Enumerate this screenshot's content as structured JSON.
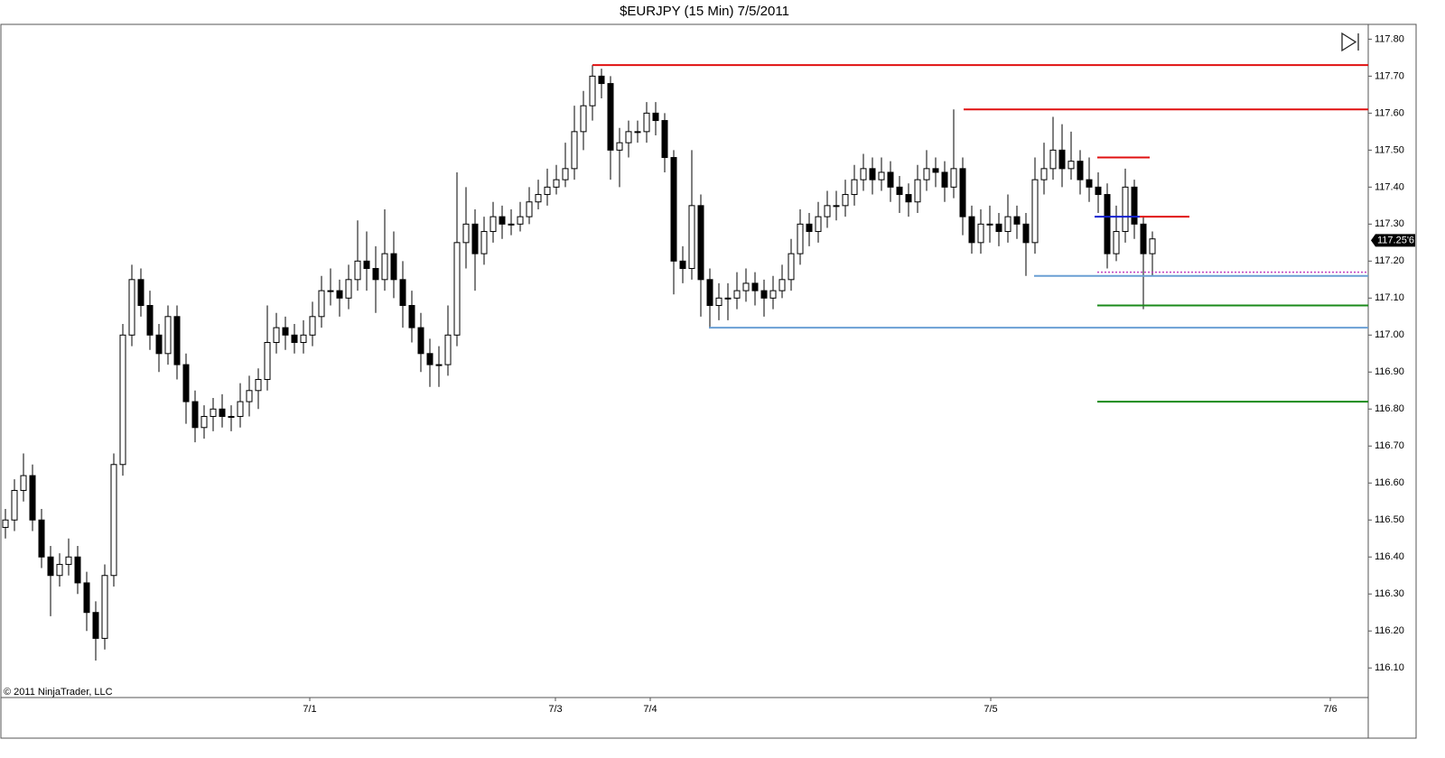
{
  "chart_data": {
    "type": "candlestick",
    "title": "$EURJPY (15 Min)  7/5/2011",
    "copyright": "© 2011 NinjaTrader, LLC",
    "xlim": [
      -0.4,
      150.9
    ],
    "xticks": [
      {
        "value": 33.7,
        "label": "7/1"
      },
      {
        "value": 60.9,
        "label": "7/3"
      },
      {
        "value": 71.4,
        "label": "7/4"
      },
      {
        "value": 109.1,
        "label": "7/5"
      },
      {
        "value": 146.7,
        "label": "7/6"
      }
    ],
    "ylim": [
      116.02,
      117.84
    ],
    "yticks": [
      {
        "value": 116.1,
        "label": "116.10"
      },
      {
        "value": 116.2,
        "label": "116.20"
      },
      {
        "value": 116.3,
        "label": "116.30"
      },
      {
        "value": 116.4,
        "label": "116.40"
      },
      {
        "value": 116.5,
        "label": "116.50"
      },
      {
        "value": 116.6,
        "label": "116.60"
      },
      {
        "value": 116.7,
        "label": "116.70"
      },
      {
        "value": 116.8,
        "label": "116.80"
      },
      {
        "value": 116.9,
        "label": "116.90"
      },
      {
        "value": 117.0,
        "label": "117.00"
      },
      {
        "value": 117.1,
        "label": "117.10"
      },
      {
        "value": 117.2,
        "label": "117.20"
      },
      {
        "value": 117.3,
        "label": "117.30"
      },
      {
        "value": 117.4,
        "label": "117.40"
      },
      {
        "value": 117.5,
        "label": "117.50"
      },
      {
        "value": 117.6,
        "label": "117.60"
      },
      {
        "value": 117.7,
        "label": "117.70"
      },
      {
        "value": 117.8,
        "label": "117.80"
      }
    ],
    "up_color": "#ffffff",
    "down_color": "#000000",
    "open": [
      116.48,
      116.5,
      116.58,
      116.62,
      116.5,
      116.4,
      116.35,
      116.38,
      116.4,
      116.33,
      116.25,
      116.18,
      116.35,
      116.65,
      117.0,
      117.15,
      117.08,
      117.0,
      116.95,
      117.05,
      116.92,
      116.82,
      116.75,
      116.78,
      116.8,
      116.78,
      116.78,
      116.82,
      116.85,
      116.88,
      116.98,
      117.02,
      117.0,
      116.98,
      117.0,
      117.05,
      117.12,
      117.12,
      117.1,
      117.15,
      117.2,
      117.18,
      117.15,
      117.22,
      117.15,
      117.08,
      117.02,
      116.95,
      116.92,
      116.92,
      117.0,
      117.25,
      117.3,
      117.22,
      117.28,
      117.32,
      117.3,
      117.3,
      117.32,
      117.36,
      117.38,
      117.4,
      117.42,
      117.45,
      117.55,
      117.62,
      117.7,
      117.68,
      117.5,
      117.52,
      117.55,
      117.55,
      117.6,
      117.58,
      117.48,
      117.2,
      117.18,
      117.35,
      117.15,
      117.08,
      117.1,
      117.1,
      117.12,
      117.14,
      117.12,
      117.1,
      117.12,
      117.15,
      117.22,
      117.3,
      117.28,
      117.32,
      117.35,
      117.35,
      117.38,
      117.42,
      117.45,
      117.42,
      117.44,
      117.4,
      117.38,
      117.36,
      117.42,
      117.45,
      117.44,
      117.4,
      117.45,
      117.32,
      117.25,
      117.3,
      117.3,
      117.28,
      117.32,
      117.3,
      117.25,
      117.42,
      117.45,
      117.5,
      117.45,
      117.47,
      117.42,
      117.4,
      117.38,
      117.22,
      117.28,
      117.4,
      117.3,
      117.22
    ],
    "high": [
      116.53,
      116.61,
      116.68,
      116.65,
      116.53,
      116.43,
      116.41,
      116.45,
      116.43,
      116.36,
      116.28,
      116.38,
      116.68,
      117.03,
      117.19,
      117.18,
      117.12,
      117.03,
      117.08,
      117.08,
      116.95,
      116.85,
      116.81,
      116.83,
      116.84,
      116.81,
      116.87,
      116.89,
      116.91,
      117.08,
      117.06,
      117.05,
      117.03,
      117.04,
      117.09,
      117.16,
      117.18,
      117.15,
      117.19,
      117.31,
      117.28,
      117.24,
      117.34,
      117.28,
      117.2,
      117.12,
      117.06,
      116.99,
      116.97,
      117.08,
      117.44,
      117.4,
      117.34,
      117.32,
      117.36,
      117.35,
      117.34,
      117.36,
      117.4,
      117.42,
      117.45,
      117.46,
      117.52,
      117.62,
      117.66,
      117.73,
      117.72,
      117.7,
      117.56,
      117.58,
      117.58,
      117.63,
      117.63,
      117.6,
      117.5,
      117.24,
      117.5,
      117.38,
      117.18,
      117.14,
      117.14,
      117.17,
      117.18,
      117.17,
      117.15,
      117.16,
      117.19,
      117.26,
      117.34,
      117.33,
      117.36,
      117.39,
      117.39,
      117.42,
      117.46,
      117.49,
      117.48,
      117.48,
      117.47,
      117.43,
      117.41,
      117.46,
      117.5,
      117.48,
      117.47,
      117.61,
      117.48,
      117.35,
      117.34,
      117.35,
      117.33,
      117.38,
      117.35,
      117.33,
      117.48,
      117.52,
      117.59,
      117.57,
      117.55,
      117.5,
      117.48,
      117.44,
      117.41,
      117.35,
      117.45,
      117.42,
      117.32,
      117.28
    ],
    "low": [
      116.45,
      116.47,
      116.55,
      116.47,
      116.37,
      116.24,
      116.32,
      116.35,
      116.3,
      116.2,
      116.12,
      116.15,
      116.32,
      116.62,
      116.97,
      117.05,
      116.96,
      116.9,
      116.92,
      116.88,
      116.76,
      116.71,
      116.72,
      116.74,
      116.75,
      116.74,
      116.75,
      116.78,
      116.8,
      116.85,
      116.95,
      116.96,
      116.95,
      116.95,
      116.97,
      117.02,
      117.08,
      117.05,
      117.07,
      117.12,
      117.12,
      117.06,
      117.12,
      117.1,
      117.02,
      116.98,
      116.9,
      116.86,
      116.86,
      116.89,
      116.97,
      117.18,
      117.12,
      117.19,
      117.25,
      117.26,
      117.27,
      117.28,
      117.3,
      117.34,
      117.35,
      117.38,
      117.4,
      117.42,
      117.5,
      117.58,
      117.64,
      117.42,
      117.4,
      117.48,
      117.52,
      117.52,
      117.54,
      117.44,
      117.11,
      117.14,
      117.15,
      117.05,
      117.02,
      117.04,
      117.04,
      117.07,
      117.09,
      117.08,
      117.05,
      117.07,
      117.1,
      117.12,
      117.19,
      117.24,
      117.25,
      117.29,
      117.31,
      117.32,
      117.35,
      117.39,
      117.38,
      117.39,
      117.36,
      117.33,
      117.32,
      117.33,
      117.39,
      117.4,
      117.36,
      117.37,
      117.27,
      117.22,
      117.22,
      117.25,
      117.24,
      117.25,
      117.26,
      117.16,
      117.22,
      117.38,
      117.42,
      117.4,
      117.42,
      117.38,
      117.36,
      117.33,
      117.18,
      117.2,
      117.25,
      117.26,
      117.07,
      117.16
    ],
    "close": [
      116.5,
      116.58,
      116.62,
      116.5,
      116.4,
      116.35,
      116.38,
      116.4,
      116.33,
      116.25,
      116.18,
      116.35,
      116.65,
      117.0,
      117.15,
      117.08,
      117.0,
      116.95,
      117.05,
      116.92,
      116.82,
      116.75,
      116.78,
      116.8,
      116.78,
      116.78,
      116.82,
      116.85,
      116.88,
      116.98,
      117.02,
      117.0,
      116.98,
      117.0,
      117.05,
      117.12,
      117.12,
      117.1,
      117.15,
      117.2,
      117.18,
      117.15,
      117.22,
      117.15,
      117.08,
      117.02,
      116.95,
      116.92,
      116.92,
      117.0,
      117.25,
      117.3,
      117.22,
      117.28,
      117.32,
      117.3,
      117.3,
      117.32,
      117.36,
      117.38,
      117.4,
      117.42,
      117.45,
      117.55,
      117.62,
      117.7,
      117.68,
      117.5,
      117.52,
      117.55,
      117.55,
      117.6,
      117.58,
      117.48,
      117.2,
      117.18,
      117.35,
      117.15,
      117.08,
      117.1,
      117.1,
      117.12,
      117.14,
      117.12,
      117.1,
      117.12,
      117.15,
      117.22,
      117.3,
      117.28,
      117.32,
      117.35,
      117.35,
      117.38,
      117.42,
      117.45,
      117.42,
      117.44,
      117.4,
      117.38,
      117.36,
      117.42,
      117.45,
      117.44,
      117.4,
      117.45,
      117.32,
      117.25,
      117.3,
      117.3,
      117.28,
      117.32,
      117.3,
      117.25,
      117.42,
      117.45,
      117.5,
      117.45,
      117.47,
      117.42,
      117.4,
      117.38,
      117.22,
      117.28,
      117.4,
      117.3,
      117.22,
      117.26
    ],
    "levels": [
      {
        "value": 117.73,
        "x": [
          65,
          150.9
        ],
        "color": "#e01010"
      },
      {
        "value": 117.61,
        "x": [
          106.1,
          150.9
        ],
        "color": "#e01010"
      },
      {
        "value": 117.48,
        "x": [
          120.9,
          126.7
        ],
        "color": "#e01010"
      },
      {
        "value": 117.32,
        "x": [
          125.6,
          131.1
        ],
        "color": "#e01010"
      },
      {
        "value": 117.32,
        "x": [
          120.6,
          125.6
        ],
        "color": "#1020d0"
      },
      {
        "value": 117.17,
        "x": [
          120.9,
          150.9
        ],
        "color": "#c040c0",
        "style": "dotted"
      },
      {
        "value": 117.16,
        "x": [
          113.9,
          150.9
        ],
        "color": "#6a9fd4"
      },
      {
        "value": 117.08,
        "x": [
          120.9,
          150.9
        ],
        "color": "#1a8a1a"
      },
      {
        "value": 117.02,
        "x": [
          77.9,
          150.9
        ],
        "color": "#6a9fd4"
      },
      {
        "value": 116.82,
        "x": [
          120.9,
          150.9
        ],
        "color": "#1a8a1a"
      }
    ],
    "last": {
      "value": 117.256,
      "label": "117.25'6"
    }
  }
}
